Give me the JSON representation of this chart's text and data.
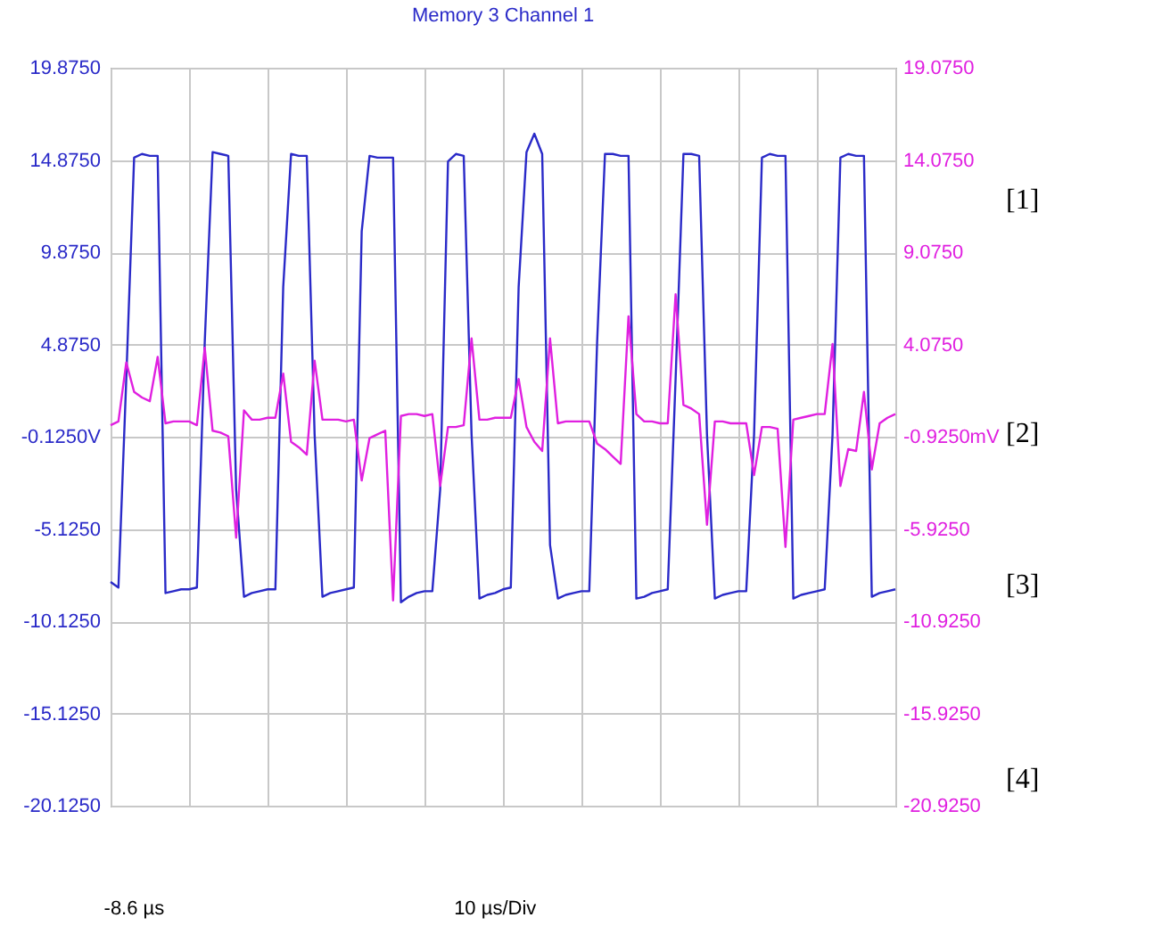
{
  "chart_data": {
    "type": "line",
    "title": "Memory 3 Channel 1",
    "categories": [
      null,
      null,
      null,
      null,
      null,
      null,
      null,
      null,
      null,
      null,
      null,
      null,
      null,
      null,
      null,
      null,
      null,
      null,
      null,
      null,
      null,
      null,
      null,
      null,
      null,
      null,
      null,
      null,
      null,
      null,
      null,
      null,
      null,
      null,
      null,
      null,
      null,
      null,
      null,
      null,
      null,
      null,
      null,
      null,
      null,
      null,
      null,
      null,
      null,
      null,
      null,
      null,
      null,
      null,
      null,
      null,
      null,
      null,
      null,
      null,
      null,
      null,
      null,
      null,
      null,
      null,
      null,
      null,
      null,
      null,
      null,
      null,
      null,
      null,
      null,
      null,
      null,
      null,
      null,
      null,
      null,
      null,
      null,
      null,
      null,
      null,
      null,
      null,
      null,
      null,
      null,
      null,
      null,
      null,
      null,
      null,
      null,
      null,
      null,
      null,
      null
    ],
    "ylim": [
      -20.125,
      19.875
    ],
    "yticks": [
      {
        "value": -20.125,
        "label": "-20.1250"
      },
      {
        "value": -15.125,
        "label": "-15.1250"
      },
      {
        "value": -10.125,
        "label": "-10.1250"
      },
      {
        "value": -5.125,
        "label": "-5.1250"
      },
      {
        "value": -0.125,
        "label": "-0.1250V"
      },
      {
        "value": 4.875,
        "label": "4.8750"
      },
      {
        "value": 9.875,
        "label": "9.8750"
      },
      {
        "value": 14.875,
        "label": "14.8750"
      },
      {
        "value": 19.875,
        "label": "19.8750"
      }
    ],
    "y2lim": [
      -20.925,
      19.075
    ],
    "y2ticks": [
      {
        "value": -20.925,
        "label": "-20.9250"
      },
      {
        "value": -15.925,
        "label": "-15.9250"
      },
      {
        "value": -10.925,
        "label": "-10.9250"
      },
      {
        "value": -5.925,
        "label": "-5.9250"
      },
      {
        "value": -0.925,
        "label": "-0.9250mV"
      },
      {
        "value": 4.075,
        "label": "4.0750"
      },
      {
        "value": 9.075,
        "label": "9.0750"
      },
      {
        "value": 14.075,
        "label": "14.0750"
      },
      {
        "value": 19.075,
        "label": "19.0750"
      }
    ],
    "grid": true,
    "annotations": [
      "-8.6 µs",
      "10 µs/Div",
      "[1]",
      "[2]",
      "[3]",
      "[4]"
    ],
    "series": [
      {
        "color": "#2a2ac8",
        "values": [
          -8.0,
          -8.3,
          3.0,
          15.0,
          15.2,
          15.1,
          15.1,
          -8.6,
          -8.5,
          -8.4,
          -8.4,
          -8.3,
          5.0,
          15.3,
          15.2,
          15.1,
          -3.0,
          -8.8,
          -8.6,
          -8.5,
          -8.4,
          -8.4,
          8.0,
          15.2,
          15.1,
          15.1,
          0.0,
          -8.8,
          -8.6,
          -8.5,
          -8.4,
          -8.3,
          11.0,
          15.1,
          15.0,
          15.0,
          15.0,
          -9.1,
          -8.8,
          -8.6,
          -8.5,
          -8.5,
          -3.0,
          14.8,
          15.2,
          15.1,
          0.0,
          -8.9,
          -8.7,
          -8.6,
          -8.4,
          -8.3,
          8.0,
          15.3,
          16.3,
          15.2,
          -6.0,
          -8.9,
          -8.7,
          -8.6,
          -8.5,
          -8.5,
          5.0,
          15.2,
          15.2,
          15.1,
          15.1,
          -8.9,
          -8.8,
          -8.6,
          -8.5,
          -8.4,
          3.0,
          15.2,
          15.2,
          15.1,
          0.0,
          -8.9,
          -8.7,
          -8.6,
          -8.5,
          -8.5,
          0.0,
          15.0,
          15.2,
          15.1,
          15.1,
          -8.9,
          -8.7,
          -8.6,
          -8.5,
          -8.4,
          0.0,
          15.0,
          15.2,
          15.1,
          15.1,
          -8.8,
          -8.6,
          -8.5,
          -8.4
        ]
      },
      {
        "color": "#e020e0",
        "axis": "y2",
        "values": [
          -0.3,
          -0.1,
          3.1,
          1.5,
          1.2,
          1.0,
          3.4,
          -0.2,
          -0.1,
          -0.1,
          -0.1,
          -0.3,
          3.9,
          -0.6,
          -0.7,
          -0.9,
          -6.4,
          0.5,
          0.0,
          0.0,
          0.1,
          0.1,
          2.5,
          -1.2,
          -1.5,
          -1.9,
          3.2,
          0.0,
          0.0,
          0.0,
          -0.1,
          0.0,
          -3.3,
          -1.0,
          -0.8,
          -0.6,
          -9.8,
          0.2,
          0.3,
          0.3,
          0.2,
          0.3,
          -3.6,
          -0.4,
          -0.4,
          -0.3,
          4.4,
          0.0,
          0.0,
          0.1,
          0.1,
          0.1,
          2.2,
          -0.4,
          -1.2,
          -1.7,
          4.4,
          -0.2,
          -0.1,
          -0.1,
          -0.1,
          -0.1,
          -1.3,
          -1.6,
          -2.0,
          -2.4,
          5.6,
          0.3,
          -0.1,
          -0.1,
          -0.2,
          -0.2,
          6.8,
          0.8,
          0.6,
          0.3,
          -5.7,
          -0.1,
          -0.1,
          -0.2,
          -0.2,
          -0.2,
          -3.0,
          -0.4,
          -0.4,
          -0.5,
          -6.9,
          0.0,
          0.1,
          0.2,
          0.3,
          0.3,
          4.1,
          -3.6,
          -1.6,
          -1.7,
          1.5,
          -2.7,
          -0.2,
          0.1,
          0.3
        ]
      }
    ]
  }
}
